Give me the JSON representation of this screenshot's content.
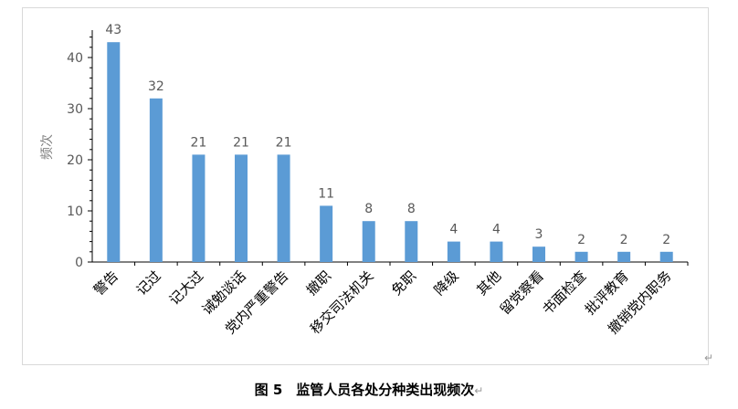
{
  "chart_data": {
    "type": "bar",
    "title": "",
    "xlabel": "",
    "ylabel": "频次",
    "ylim": [
      0,
      45
    ],
    "yticks": [
      0,
      10,
      20,
      30,
      40
    ],
    "grid": false,
    "legend": "none",
    "bar_color": "#5b9bd5",
    "categories": [
      "警告",
      "记过",
      "记大过",
      "诫勉谈话",
      "党内严重警告",
      "撤职",
      "移交司法机关",
      "免职",
      "降级",
      "其他",
      "留党察看",
      "书面检查",
      "批评教育",
      "撤销党内职务"
    ],
    "values": [
      43,
      32,
      21,
      21,
      21,
      11,
      8,
      8,
      4,
      4,
      3,
      2,
      2,
      2
    ]
  },
  "caption": {
    "text": "图 5　监管人员各处分种类出现频次",
    "return_mark": "↵"
  },
  "corner_mark": "↵"
}
